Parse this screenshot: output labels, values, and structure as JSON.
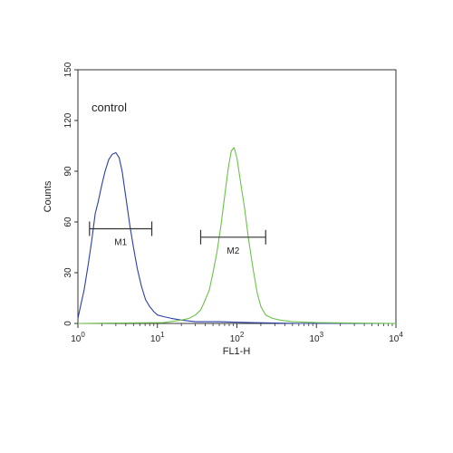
{
  "chart_data": {
    "type": "line",
    "title": "",
    "xlabel": "FL1-H",
    "ylabel": "Counts",
    "x_scale": "log",
    "xlim": [
      1,
      10000
    ],
    "ylim": [
      0,
      150
    ],
    "x_ticks": [
      {
        "value": 1,
        "base": "10",
        "exp": "0"
      },
      {
        "value": 10,
        "base": "10",
        "exp": "1"
      },
      {
        "value": 100,
        "base": "10",
        "exp": "2"
      },
      {
        "value": 1000,
        "base": "10",
        "exp": "3"
      },
      {
        "value": 10000,
        "base": "10",
        "exp": "4"
      }
    ],
    "y_ticks": [
      "0",
      "30",
      "60",
      "90",
      "120",
      "150"
    ],
    "grid": false,
    "annotation": "control",
    "series": [
      {
        "color": "#2b3fa6",
        "points": [
          [
            1.0,
            3
          ],
          [
            1.1,
            12
          ],
          [
            1.2,
            20
          ],
          [
            1.35,
            35
          ],
          [
            1.5,
            50
          ],
          [
            1.65,
            65
          ],
          [
            1.8,
            72
          ],
          [
            2.0,
            82
          ],
          [
            2.2,
            90
          ],
          [
            2.45,
            97
          ],
          [
            2.7,
            100
          ],
          [
            3.0,
            101
          ],
          [
            3.3,
            98
          ],
          [
            3.6,
            90
          ],
          [
            4.0,
            75
          ],
          [
            4.5,
            58
          ],
          [
            5.0,
            45
          ],
          [
            5.6,
            32
          ],
          [
            6.3,
            22
          ],
          [
            7.1,
            14
          ],
          [
            8.0,
            10
          ],
          [
            9.0,
            7
          ],
          [
            10,
            5
          ],
          [
            12,
            4
          ],
          [
            15,
            3
          ],
          [
            20,
            2
          ],
          [
            30,
            1
          ],
          [
            60,
            1
          ],
          [
            150,
            0.5
          ],
          [
            600,
            0
          ],
          [
            10000,
            0
          ]
        ]
      },
      {
        "color": "#6cc24a",
        "points": [
          [
            1,
            0
          ],
          [
            12,
            0.5
          ],
          [
            20,
            2
          ],
          [
            25,
            3
          ],
          [
            30,
            5
          ],
          [
            35,
            8
          ],
          [
            40,
            14
          ],
          [
            45,
            20
          ],
          [
            50,
            30
          ],
          [
            56,
            42
          ],
          [
            63,
            58
          ],
          [
            70,
            75
          ],
          [
            78,
            92
          ],
          [
            85,
            102
          ],
          [
            92,
            104
          ],
          [
            100,
            98
          ],
          [
            110,
            85
          ],
          [
            125,
            68
          ],
          [
            140,
            50
          ],
          [
            160,
            32
          ],
          [
            180,
            18
          ],
          [
            200,
            10
          ],
          [
            230,
            5
          ],
          [
            280,
            3
          ],
          [
            350,
            2
          ],
          [
            500,
            1
          ],
          [
            1000,
            0.5
          ],
          [
            10000,
            0
          ]
        ]
      }
    ],
    "markers": [
      {
        "label": "M1",
        "x_start": 1.4,
        "x_end": 8.5,
        "y": 56
      },
      {
        "label": "M2",
        "x_start": 35,
        "x_end": 230,
        "y": 51
      }
    ]
  }
}
